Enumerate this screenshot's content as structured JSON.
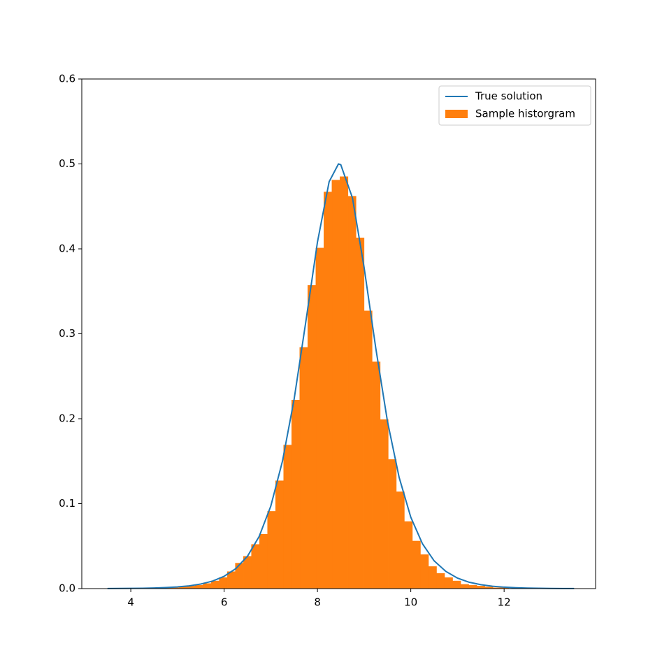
{
  "chart_data": {
    "type": "histogram",
    "xlim": [
      2.95,
      13.96
    ],
    "ylim": [
      0,
      0.6
    ],
    "xticks": [
      4,
      6,
      8,
      10,
      12
    ],
    "yticks": [
      {
        "value": 0,
        "label": "0.0"
      },
      0.1,
      0.2,
      0.3,
      0.4,
      0.5,
      0.6
    ],
    "legend": "upper right",
    "series": [
      {
        "name": "True solution",
        "type": "line",
        "color": "#1f77b4",
        "x": [
          3.5,
          3.75,
          4.0,
          4.25,
          4.5,
          4.75,
          5.0,
          5.25,
          5.5,
          5.75,
          6.0,
          6.25,
          6.5,
          6.75,
          7.0,
          7.25,
          7.5,
          7.75,
          8.0,
          8.25,
          8.45,
          8.5,
          8.75,
          9.0,
          9.25,
          9.5,
          9.75,
          10.0,
          10.25,
          10.5,
          10.75,
          11.0,
          11.25,
          11.5,
          11.75,
          12.0,
          12.25,
          12.5,
          12.75,
          13.0,
          13.25,
          13.5
        ],
        "values": [
          0.0001,
          0.0002,
          0.0003,
          0.0004,
          0.0007,
          0.0012,
          0.002,
          0.0032,
          0.0054,
          0.0088,
          0.0145,
          0.0235,
          0.0381,
          0.0613,
          0.0971,
          0.15,
          0.223,
          0.314,
          0.408,
          0.479,
          0.5,
          0.499,
          0.46,
          0.378,
          0.283,
          0.197,
          0.131,
          0.084,
          0.0528,
          0.0327,
          0.0203,
          0.0124,
          0.0075,
          0.0046,
          0.0028,
          0.0017,
          0.001,
          0.0006,
          0.0004,
          0.0002,
          0.0001,
          0.0001
        ]
      },
      {
        "name": "Sample historgram",
        "type": "histogram",
        "color": "#ff7f0e",
        "bins": [
          3.48,
          3.6525,
          3.825,
          3.9975,
          4.17,
          4.3425,
          4.515,
          4.6875,
          4.86,
          5.0325,
          5.205,
          5.3775,
          5.55,
          5.7225,
          5.895,
          6.0675,
          6.24,
          6.4125,
          6.585,
          6.7575,
          6.93,
          7.1025,
          7.275,
          7.4475,
          7.62,
          7.7925,
          7.965,
          8.1375,
          8.31,
          8.4825,
          8.655,
          8.8275,
          9.0,
          9.1725,
          9.345,
          9.5175,
          9.69,
          9.8625,
          10.035,
          10.2075,
          10.38,
          10.5525,
          10.725,
          10.8975,
          11.07,
          11.2425,
          11.415,
          11.5875,
          11.76,
          11.9325,
          12.105,
          12.2775,
          12.45,
          12.6225,
          12.795,
          12.9675,
          13.14,
          13.3125,
          13.485,
          13.6575,
          13.83
        ],
        "values": [
          0,
          0,
          0,
          0,
          0,
          0,
          0.001,
          0.001,
          0.001,
          0.002,
          0.003,
          0.004,
          0.006,
          0.009,
          0.013,
          0.02,
          0.03,
          0.038,
          0.052,
          0.064,
          0.091,
          0.127,
          0.169,
          0.222,
          0.284,
          0.357,
          0.401,
          0.467,
          0.481,
          0.485,
          0.462,
          0.413,
          0.327,
          0.267,
          0.199,
          0.152,
          0.114,
          0.079,
          0.056,
          0.04,
          0.026,
          0.018,
          0.013,
          0.009,
          0.005,
          0.004,
          0.003,
          0.002,
          0.001,
          0.001,
          0,
          0,
          0,
          0,
          0,
          0,
          0,
          0,
          0,
          0
        ]
      }
    ]
  }
}
